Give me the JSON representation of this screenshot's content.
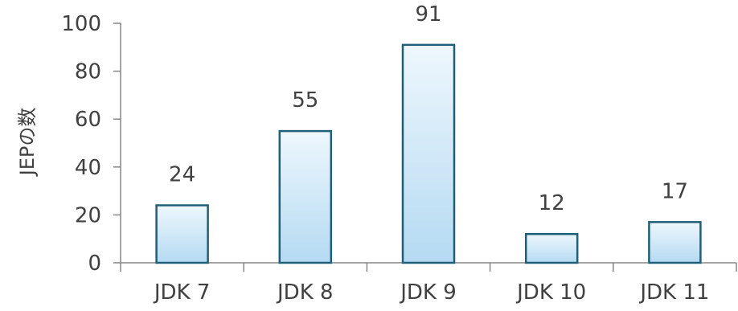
{
  "chart_data": {
    "type": "bar",
    "title": "",
    "xlabel": "",
    "ylabel": "JEPの数",
    "categories": [
      "JDK 7",
      "JDK 8",
      "JDK 9",
      "JDK 10",
      "JDK 11"
    ],
    "values": [
      24,
      55,
      91,
      12,
      17
    ],
    "ylim": [
      0,
      100
    ],
    "yticks": [
      0,
      20,
      40,
      60,
      80,
      100
    ],
    "grid": false,
    "legend": "none",
    "data_labels": true
  },
  "colors": {
    "bar_top": "#eef7fd",
    "bar_bottom": "#b4daf2",
    "bar_edge": "#1f5f78",
    "axis": "#878787",
    "text": "#404040"
  }
}
